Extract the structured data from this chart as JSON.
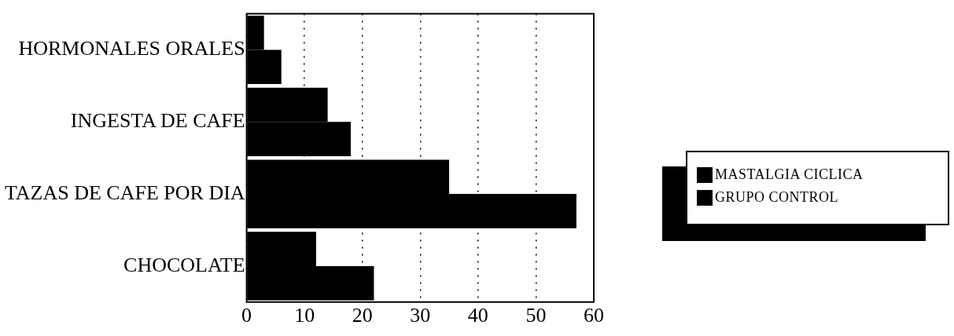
{
  "chart_data": {
    "type": "bar",
    "orientation": "horizontal",
    "categories": [
      "HORMONALES ORALES",
      "INGESTA DE CAFE",
      "TAZAS DE CAFE POR DIA",
      "CHOCOLATE"
    ],
    "series": [
      {
        "name": "MASTALGIA CICLICA",
        "color": "#000000",
        "values": [
          3,
          14,
          35,
          12
        ]
      },
      {
        "name": "GRUPO CONTROL",
        "color": "#000000",
        "values": [
          6,
          18,
          57,
          22
        ]
      }
    ],
    "xlim": [
      0,
      60
    ],
    "xticks": [
      0,
      10,
      20,
      30,
      40,
      50,
      60
    ],
    "grid": "x",
    "legend": "right"
  }
}
